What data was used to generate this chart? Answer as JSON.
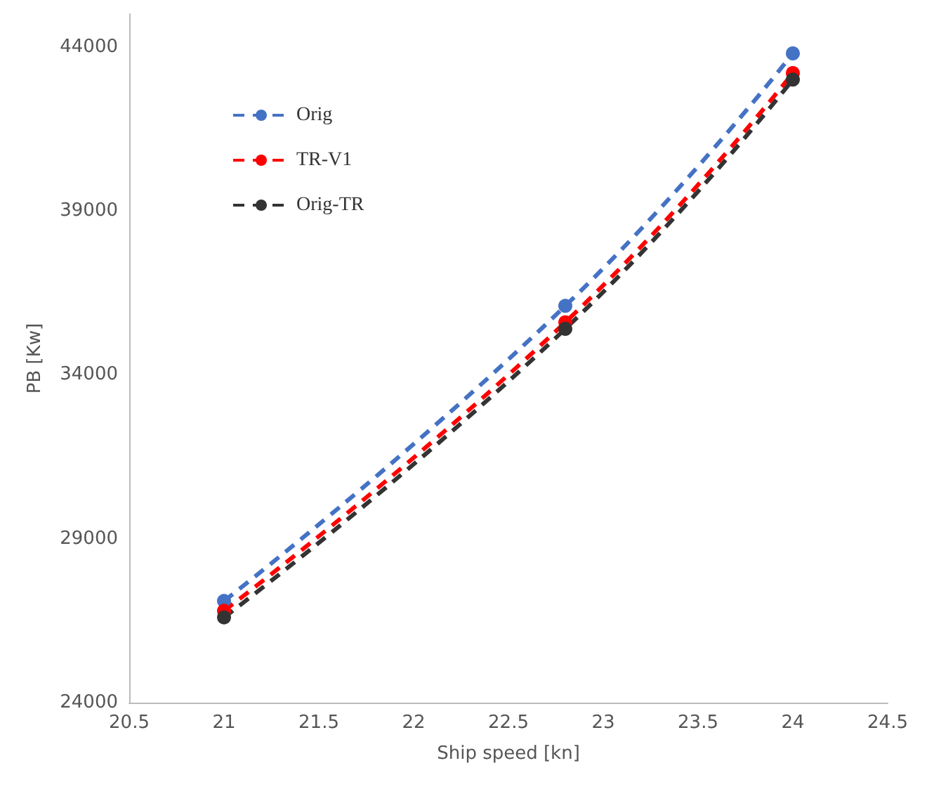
{
  "chart_data": {
    "type": "line",
    "xlabel": "Ship speed [kn]",
    "ylabel": "PB [Kw]",
    "xlim": [
      20.5,
      24.5
    ],
    "xticks": [
      20.5,
      21,
      21.5,
      22,
      22.5,
      23,
      23.5,
      24,
      24.5
    ],
    "ylim": [
      24000,
      45000
    ],
    "yticks": [
      24000,
      29000,
      34000,
      39000,
      44000
    ],
    "grid": false,
    "legend": "top left",
    "marker": "circle",
    "line_style": "dashed",
    "x": [
      21,
      22.8,
      24
    ],
    "series": [
      {
        "name": "Orig",
        "color": "#4472c4",
        "values": [
          27100,
          36100,
          43800
        ]
      },
      {
        "name": "TR-V1",
        "color": "#ff0000",
        "values": [
          26800,
          35600,
          43200
        ]
      },
      {
        "name": "Orig-TR",
        "color": "#333333",
        "values": [
          26600,
          35400,
          43000
        ]
      }
    ]
  }
}
